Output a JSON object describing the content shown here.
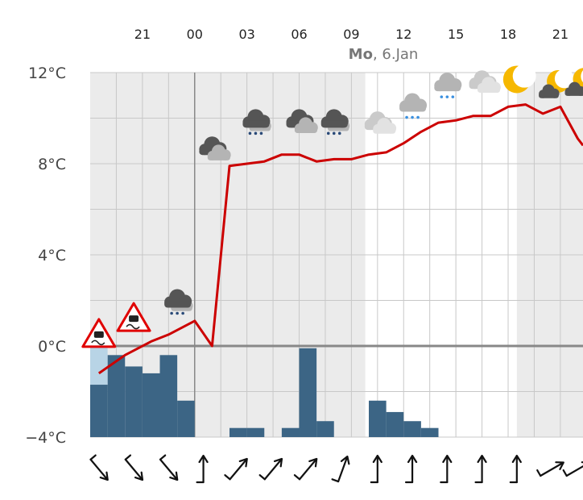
{
  "colors": {
    "temperature_line": "#cc0000",
    "precip_bar": "#3c6585",
    "snow_bar": "#b8d4e6",
    "day_band": "#ebebeb",
    "night_band": "#ffffff",
    "grid": "#c8c8c8",
    "zero_line": "#888888",
    "moon": "#f6b800",
    "cloud_dark": "#555555",
    "cloud_light": "#b4b4b4",
    "rain_dark": "#2a4a78",
    "rain_light": "#3a90e0",
    "warning_red": "#e00000"
  },
  "chart_data": {
    "type": "line",
    "date_label": {
      "day": "Mo",
      "rest": ", 6.Jan"
    },
    "x_tick_labels": [
      "21",
      "00",
      "03",
      "06",
      "09",
      "12",
      "15",
      "18",
      "21"
    ],
    "x_tick_hours": [
      21,
      24,
      27,
      30,
      33,
      36,
      39,
      42,
      45
    ],
    "y_tick_labels": [
      "12°C",
      "8°C",
      "4°C",
      "0°C",
      "−4°C"
    ],
    "y_tick_values": [
      12,
      8,
      4,
      0,
      -4
    ],
    "ylim": [
      -4,
      12
    ],
    "xlim": [
      18.0,
      46.3
    ],
    "grid": true,
    "grey_bands": [
      [
        18.0,
        33.8
      ],
      [
        42.5,
        46.3
      ]
    ],
    "series": [
      {
        "kind": "temperature",
        "x": [
          18.5,
          20.0,
          21.5,
          22.5,
          24.0,
          25.0,
          26.0,
          27.0,
          28.0,
          29.0,
          30.0,
          31.0,
          32.0,
          33.0,
          34.0,
          35.0,
          36.0,
          37.0,
          38.0,
          39.0,
          40.0,
          41.0,
          42.0,
          43.0,
          44.0,
          45.0,
          46.0,
          46.3
        ],
        "y": [
          -1.2,
          -0.4,
          0.2,
          0.5,
          1.1,
          0.0,
          7.9,
          8.0,
          8.1,
          8.4,
          8.4,
          8.1,
          8.2,
          8.2,
          8.4,
          8.5,
          8.9,
          9.4,
          9.8,
          9.9,
          10.1,
          10.1,
          10.5,
          10.6,
          10.2,
          10.5,
          9.1,
          8.8
        ]
      },
      {
        "kind": "precipitation",
        "x": [
          18.5,
          19.5,
          20.5,
          21.5,
          22.5,
          23.5,
          24.5,
          25.5,
          26.5,
          27.5,
          28.5,
          29.5,
          30.5,
          31.5,
          32.5,
          33.5,
          34.5,
          35.5,
          36.5,
          37.5,
          38.5,
          39.5,
          40.5,
          41.5,
          42.5,
          43.5,
          44.5,
          45.5
        ],
        "y": [
          -1.7,
          -0.4,
          -0.9,
          -1.2,
          -0.4,
          -2.4,
          -4.0,
          -4.0,
          -3.6,
          -3.6,
          -4.0,
          -3.6,
          -0.1,
          -3.3,
          -4.0,
          -4.0,
          -2.4,
          -2.9,
          -3.3,
          -3.6,
          -4.0,
          -4.0,
          -4.0,
          -4.0,
          -4.0,
          -4.0,
          -4.0,
          -4.0
        ]
      },
      {
        "kind": "snow",
        "x": [
          18.5
        ],
        "y": [
          0.3
        ]
      }
    ],
    "weather_icons": [
      {
        "hour": 18.5,
        "temp": 0.5,
        "icon": "slippery-road-warning-icon"
      },
      {
        "hour": 20.5,
        "temp": 1.2,
        "icon": "slippery-road-warning-icon"
      },
      {
        "hour": 23.0,
        "temp": 2.0,
        "icon": "heavy-rain-cloud-icon"
      },
      {
        "hour": 25.0,
        "temp": 8.7,
        "icon": "overcast-cloud-icon"
      },
      {
        "hour": 27.5,
        "temp": 9.9,
        "icon": "heavy-rain-cloud-icon"
      },
      {
        "hour": 30.0,
        "temp": 9.9,
        "icon": "overcast-cloud-icon"
      },
      {
        "hour": 32.0,
        "temp": 9.9,
        "icon": "heavy-rain-cloud-icon"
      },
      {
        "hour": 34.5,
        "temp": 9.8,
        "icon": "light-cloud-icon"
      },
      {
        "hour": 36.5,
        "temp": 10.6,
        "icon": "light-rain-cloud-icon"
      },
      {
        "hour": 38.5,
        "temp": 11.5,
        "icon": "light-rain-cloud-icon"
      },
      {
        "hour": 40.5,
        "temp": 11.6,
        "icon": "light-cloud-icon"
      },
      {
        "hour": 42.5,
        "temp": 11.7,
        "icon": "moon-icon"
      },
      {
        "hour": 44.5,
        "temp": 11.4,
        "icon": "moon-cloud-icon"
      },
      {
        "hour": 46.0,
        "temp": 11.5,
        "icon": "moon-cloud-icon"
      }
    ],
    "wind_arrows": [
      {
        "hour": 18.5,
        "icon": "wind-arrow-icon",
        "direction_deg": 140
      },
      {
        "hour": 20.5,
        "icon": "wind-arrow-icon",
        "direction_deg": 140
      },
      {
        "hour": 22.5,
        "icon": "wind-arrow-icon",
        "direction_deg": 140
      },
      {
        "hour": 24.5,
        "icon": "wind-arrow-icon",
        "direction_deg": 0
      },
      {
        "hour": 26.5,
        "icon": "wind-arrow-icon",
        "direction_deg": 40
      },
      {
        "hour": 28.5,
        "icon": "wind-arrow-icon",
        "direction_deg": 40
      },
      {
        "hour": 30.5,
        "icon": "wind-arrow-icon",
        "direction_deg": 40
      },
      {
        "hour": 32.5,
        "icon": "wind-arrow-icon",
        "direction_deg": 20
      },
      {
        "hour": 34.5,
        "icon": "wind-arrow-icon",
        "direction_deg": 0
      },
      {
        "hour": 36.5,
        "icon": "wind-arrow-icon",
        "direction_deg": 0
      },
      {
        "hour": 38.5,
        "icon": "wind-arrow-icon",
        "direction_deg": 0
      },
      {
        "hour": 40.5,
        "icon": "wind-arrow-icon",
        "direction_deg": 0
      },
      {
        "hour": 42.5,
        "icon": "wind-arrow-icon",
        "direction_deg": 0
      },
      {
        "hour": 44.5,
        "icon": "wind-arrow-icon",
        "direction_deg": 60
      },
      {
        "hour": 46.0,
        "icon": "wind-arrow-icon",
        "direction_deg": 60
      }
    ]
  }
}
